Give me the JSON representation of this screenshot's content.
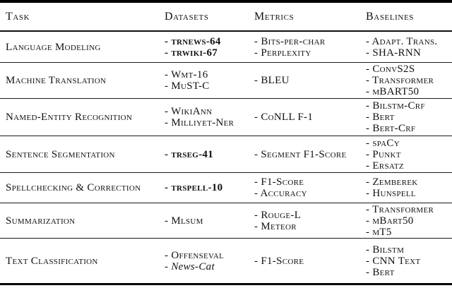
{
  "table": {
    "headers": [
      "Task",
      "Datasets",
      "Metrics",
      "Baselines"
    ],
    "item_prefix": "- ",
    "colors": {
      "text": "#111111",
      "rule": "#000000",
      "background": "#ffffff"
    },
    "rows": [
      {
        "task": "Language Modeling",
        "datasets": [
          {
            "text": "trnews-64",
            "bold": true
          },
          {
            "text": "trwiki-67",
            "bold": true
          }
        ],
        "metrics": [
          {
            "text": "Bits-per-char"
          },
          {
            "text": "Perplexity"
          }
        ],
        "baselines": [
          {
            "text": "Adapt. Trans."
          },
          {
            "text": "SHA-RNN"
          }
        ]
      },
      {
        "task": "Machine Translation",
        "datasets": [
          {
            "text": "Wmt-16"
          },
          {
            "text": "MuST-C"
          }
        ],
        "metrics": [
          {
            "text": "BLEU"
          }
        ],
        "baselines": [
          {
            "text": "ConvS2S"
          },
          {
            "text": "Transformer"
          },
          {
            "text": "mBART50"
          }
        ]
      },
      {
        "task": "Named-Entity Recognition",
        "datasets": [
          {
            "text": "WikiAnn"
          },
          {
            "text": "Milliyet-Ner"
          }
        ],
        "metrics": [
          {
            "text": "CoNLL F-1"
          }
        ],
        "baselines": [
          {
            "text": "Bilstm-Crf"
          },
          {
            "text": "Bert"
          },
          {
            "text": "Bert-Crf"
          }
        ]
      },
      {
        "task": "Sentence Segmentation",
        "datasets": [
          {
            "text": "trseg-41",
            "bold": true
          }
        ],
        "metrics": [
          {
            "text": "Segment F1-Score"
          }
        ],
        "baselines": [
          {
            "text": "spaCy"
          },
          {
            "text": "Punkt"
          },
          {
            "text": "Ersatz"
          }
        ]
      },
      {
        "task": "Spellchecking & Correction",
        "datasets": [
          {
            "text": "trspell-10",
            "bold": true
          }
        ],
        "metrics": [
          {
            "text": "F1-Score"
          },
          {
            "text": "Accuracy"
          }
        ],
        "baselines": [
          {
            "text": "Zemberek"
          },
          {
            "text": "Hunspell"
          }
        ]
      },
      {
        "task": "Summarization",
        "datasets": [
          {
            "text": "Mlsum"
          }
        ],
        "metrics": [
          {
            "text": "Rouge-L"
          },
          {
            "text": "Meteor"
          }
        ],
        "baselines": [
          {
            "text": "Transformer"
          },
          {
            "text": "mBart50"
          },
          {
            "text": "mT5"
          }
        ]
      },
      {
        "task": "Text Classification",
        "datasets": [
          {
            "text": "Offenseval"
          },
          {
            "text": "News-Cat",
            "italic": true
          }
        ],
        "metrics": [
          {
            "text": "F1-Score"
          }
        ],
        "baselines": [
          {
            "text": "Bilstm"
          },
          {
            "text": "CNN Text"
          },
          {
            "text": "Bert"
          }
        ]
      }
    ]
  }
}
